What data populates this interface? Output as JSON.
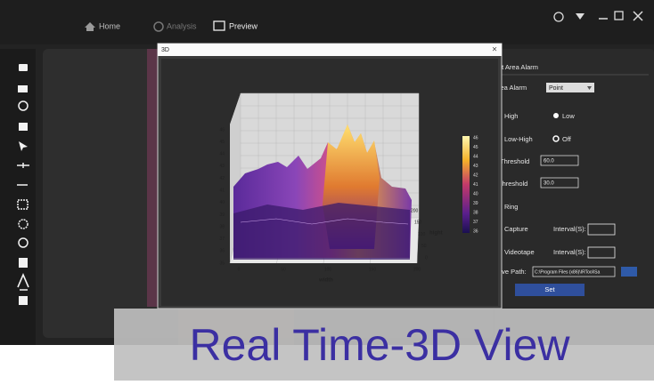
{
  "nav": {
    "home": "Home",
    "analysis": "Analysis",
    "preview": "Preview"
  },
  "dialog": {
    "title": "3D",
    "close": "×",
    "chart": {
      "x_label": "width",
      "y_label": "hight",
      "z_ticks": [
        "46",
        "45",
        "44",
        "43",
        "42",
        "41",
        "40",
        "39",
        "38",
        "37",
        "36",
        "35"
      ],
      "x_ticks": [
        "0",
        "50",
        "100",
        "150",
        "200"
      ],
      "y_ticks": [
        "200",
        "150",
        "100",
        "50",
        "0"
      ],
      "colorbar_ticks": [
        "46",
        "45",
        "44",
        "43",
        "42",
        "41",
        "40",
        "39",
        "38",
        "37",
        "36"
      ]
    }
  },
  "panel": {
    "title": "et Area Alarm",
    "area_alarm": "rea Alarm",
    "area_alarm_value": "Point",
    "high": "High",
    "low": "Low",
    "low_high": "Low-High",
    "off": "Off",
    "threshold_high": "Threshold",
    "threshold_high_value": "60.0",
    "threshold_low": "Threshold",
    "threshold_low_value": "30.0",
    "ring": "Ring",
    "capture": "Capture",
    "capture_interval": "Interval(S):",
    "videotape": "Videotape",
    "videotape_interval": "Interval(S):",
    "save_path": "ave Path:",
    "save_path_value": "C:\\Program Files (x86)\\IRTool\\Sa",
    "set": "Set"
  },
  "banner": "Real Time-3D View"
}
